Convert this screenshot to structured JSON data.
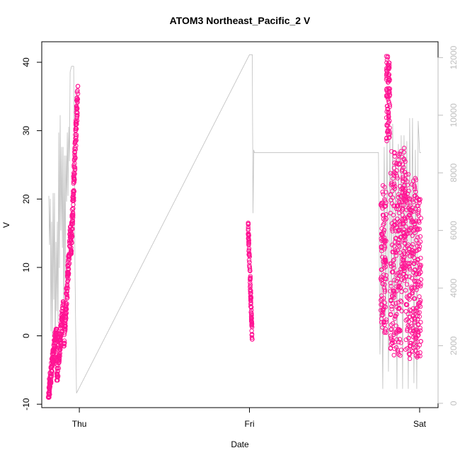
{
  "chart_data": {
    "type": "scatter",
    "title": "ATOM3 Northeast_Pacific_2 V",
    "xlabel": "Date",
    "ylabel": "V",
    "x_ticks": [
      {
        "label": "Thu",
        "value": 0
      },
      {
        "label": "Fri",
        "value": 24
      },
      {
        "label": "Sat",
        "value": 48
      }
    ],
    "xlim": [
      -5.3,
      50.6
    ],
    "ylim": [
      -10.5,
      43
    ],
    "y_ticks": [
      -10,
      0,
      10,
      20,
      30,
      40
    ],
    "y2lim": [
      -150,
      12550
    ],
    "y2_ticks": [
      0,
      2000,
      4000,
      6000,
      8000,
      10000,
      12000
    ],
    "grid": false,
    "colors": {
      "points": "#ff1493",
      "secondary_line": "#bebebe"
    },
    "series": [
      {
        "type": "scatter",
        "axis": "left",
        "marker": "open-circle",
        "color": "#ff1493",
        "clusters": [
          {
            "x_start": -4.4,
            "x_end": -3.2,
            "y_low": -9.0,
            "y_high": 1.0,
            "trend": "rise",
            "noise": 3.0,
            "n": 150
          },
          {
            "x_start": -3.2,
            "x_end": -2.2,
            "y_low": -6.5,
            "y_high": 5.0,
            "trend": "rise",
            "noise": 4.0,
            "n": 120
          },
          {
            "x_start": -2.2,
            "x_end": -1.2,
            "y_low": -1.5,
            "y_high": 16.0,
            "trend": "rise",
            "noise": 4.0,
            "n": 130
          },
          {
            "x_start": -1.2,
            "x_end": -0.2,
            "y_low": 12.0,
            "y_high": 36.5,
            "trend": "rise",
            "noise": 5.0,
            "n": 160
          },
          {
            "x_start": 23.8,
            "x_end": 24.4,
            "y_low": -0.5,
            "y_high": 16.5,
            "trend": "fall",
            "noise": 3.0,
            "n": 120
          },
          {
            "x_start": 42.5,
            "x_end": 43.3,
            "y_low": -1.0,
            "y_high": 22.0,
            "trend": "flat",
            "noise": 9.0,
            "n": 110
          },
          {
            "x_start": 43.3,
            "x_end": 43.8,
            "y_low": 28.0,
            "y_high": 41.0,
            "trend": "flat",
            "noise": 5.0,
            "n": 90
          },
          {
            "x_start": 43.8,
            "x_end": 45.5,
            "y_low": -3.0,
            "y_high": 27.0,
            "trend": "flat",
            "noise": 11.0,
            "n": 200
          },
          {
            "x_start": 45.5,
            "x_end": 46.0,
            "y_low": 8.0,
            "y_high": 27.5,
            "trend": "flat",
            "noise": 8.0,
            "n": 80
          },
          {
            "x_start": 46.0,
            "x_end": 47.7,
            "y_low": -3.5,
            "y_high": 24.0,
            "trend": "flat",
            "noise": 11.0,
            "n": 200
          },
          {
            "x_start": 47.7,
            "x_end": 48.2,
            "y_low": -3.0,
            "y_high": 20.0,
            "trend": "flat",
            "noise": 8.0,
            "n": 70
          }
        ]
      },
      {
        "type": "line",
        "axis": "right",
        "color": "#bebebe",
        "points": [
          [
            -4.3,
            7200
          ],
          [
            -4.2,
            5500
          ],
          [
            -4.1,
            7100
          ],
          [
            -4.0,
            2500
          ],
          [
            -3.9,
            6300
          ],
          [
            -3.8,
            2300
          ],
          [
            -3.7,
            7300
          ],
          [
            -3.6,
            3600
          ],
          [
            -3.5,
            7300
          ],
          [
            -3.4,
            1300
          ],
          [
            -3.3,
            5600
          ],
          [
            -3.2,
            3200
          ],
          [
            -3.1,
            6300
          ],
          [
            -3.0,
            2800
          ],
          [
            -2.9,
            9400
          ],
          [
            -2.8,
            4700
          ],
          [
            -2.7,
            10000
          ],
          [
            -2.6,
            6000
          ],
          [
            -2.5,
            8900
          ],
          [
            -2.4,
            5400
          ],
          [
            -2.3,
            8900
          ],
          [
            -2.2,
            2700
          ],
          [
            -2.1,
            8600
          ],
          [
            -2.0,
            4300
          ],
          [
            -1.9,
            8600
          ],
          [
            -1.8,
            7000
          ],
          [
            -1.7,
            9400
          ],
          [
            -1.6,
            7200
          ],
          [
            -1.5,
            9600
          ],
          [
            -1.4,
            8400
          ],
          [
            -1.3,
            11500
          ],
          [
            -1.1,
            11700
          ],
          [
            -1.0,
            11700
          ],
          [
            -0.8,
            11700
          ],
          [
            -0.6,
            4300
          ],
          [
            -0.4,
            350
          ],
          [
            24.0,
            12100
          ],
          [
            24.4,
            12100
          ],
          [
            24.5,
            6600
          ],
          [
            24.6,
            8800
          ],
          [
            24.7,
            8700
          ],
          [
            42.2,
            8700
          ],
          [
            42.4,
            1700
          ],
          [
            42.6,
            6000
          ],
          [
            42.8,
            500
          ],
          [
            43.0,
            8900
          ],
          [
            43.2,
            2800
          ],
          [
            43.4,
            9300
          ],
          [
            43.6,
            1100
          ],
          [
            43.8,
            9400
          ],
          [
            44.0,
            3500
          ],
          [
            44.2,
            9700
          ],
          [
            44.4,
            2300
          ],
          [
            44.6,
            8500
          ],
          [
            44.8,
            500
          ],
          [
            45.0,
            9000
          ],
          [
            45.2,
            3300
          ],
          [
            45.4,
            9300
          ],
          [
            45.6,
            500
          ],
          [
            45.8,
            9300
          ],
          [
            46.0,
            3700
          ],
          [
            46.2,
            9100
          ],
          [
            46.4,
            500
          ],
          [
            46.6,
            9900
          ],
          [
            46.8,
            4300
          ],
          [
            47.0,
            9900
          ],
          [
            47.2,
            700
          ],
          [
            47.4,
            8800
          ],
          [
            47.6,
            500
          ],
          [
            47.8,
            9800
          ],
          [
            48.0,
            8700
          ],
          [
            48.2,
            8700
          ]
        ]
      }
    ]
  }
}
